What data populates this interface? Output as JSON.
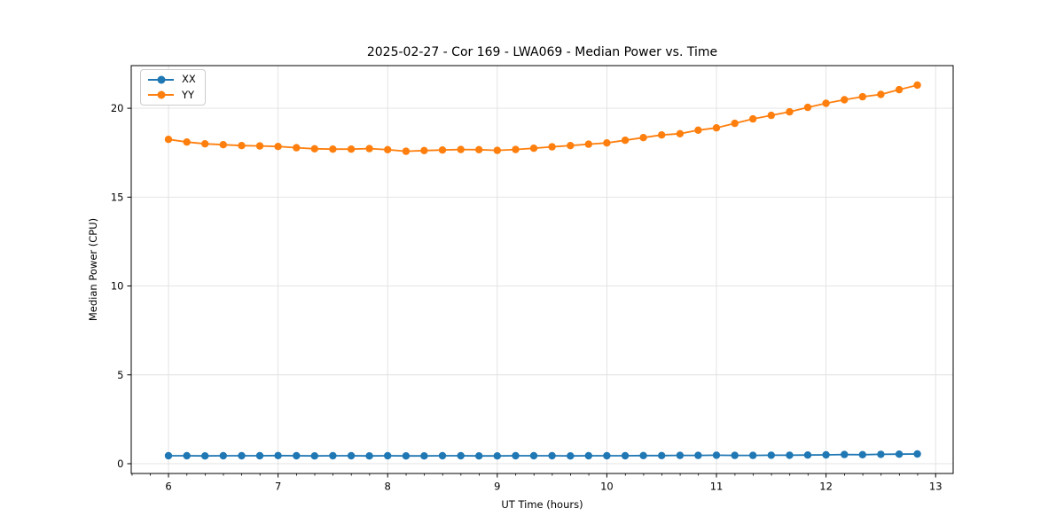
{
  "chart_data": {
    "type": "line",
    "title": "2025-02-27 - Cor 169 - LWA069 - Median Power vs. Time",
    "xlabel": "UT Time (hours)",
    "ylabel": "Median Power (CPU)",
    "xlim": [
      5.66,
      13.16
    ],
    "ylim": [
      -0.55,
      22.4
    ],
    "xticks": [
      6,
      7,
      8,
      9,
      10,
      11,
      12,
      13
    ],
    "yticks": [
      0,
      5,
      10,
      15,
      20
    ],
    "x_minor_step": 0.1667,
    "grid": true,
    "grid_color": "#e0e0e0",
    "legend_position": "upper-left",
    "x": [
      6.0,
      6.167,
      6.333,
      6.5,
      6.667,
      6.833,
      7.0,
      7.167,
      7.333,
      7.5,
      7.667,
      7.833,
      8.0,
      8.167,
      8.333,
      8.5,
      8.667,
      8.833,
      9.0,
      9.167,
      9.333,
      9.5,
      9.667,
      9.833,
      10.0,
      10.167,
      10.333,
      10.5,
      10.667,
      10.833,
      11.0,
      11.167,
      11.333,
      11.5,
      11.667,
      11.833,
      12.0,
      12.167,
      12.333,
      12.5,
      12.667,
      12.833
    ],
    "series": [
      {
        "name": "XX",
        "color": "#1f77b4",
        "values": [
          0.45,
          0.45,
          0.44,
          0.45,
          0.45,
          0.45,
          0.46,
          0.45,
          0.44,
          0.45,
          0.45,
          0.44,
          0.45,
          0.44,
          0.44,
          0.45,
          0.45,
          0.44,
          0.44,
          0.45,
          0.45,
          0.45,
          0.44,
          0.45,
          0.45,
          0.45,
          0.46,
          0.46,
          0.47,
          0.47,
          0.48,
          0.47,
          0.47,
          0.48,
          0.48,
          0.49,
          0.5,
          0.52,
          0.51,
          0.53,
          0.54,
          0.55
        ]
      },
      {
        "name": "YY",
        "color": "#ff7f0e",
        "values": [
          18.25,
          18.1,
          18.0,
          17.95,
          17.9,
          17.88,
          17.85,
          17.78,
          17.72,
          17.7,
          17.7,
          17.73,
          17.67,
          17.58,
          17.62,
          17.65,
          17.68,
          17.67,
          17.63,
          17.68,
          17.75,
          17.83,
          17.9,
          17.98,
          18.05,
          18.2,
          18.35,
          18.5,
          18.57,
          18.77,
          18.9,
          19.15,
          19.4,
          19.6,
          19.8,
          20.05,
          20.28,
          20.48,
          20.65,
          20.78,
          21.05,
          21.3
        ]
      }
    ]
  }
}
